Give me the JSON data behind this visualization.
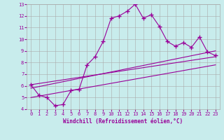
{
  "xlabel": "Windchill (Refroidissement éolien,°C)",
  "background_color": "#c8ecec",
  "line_color": "#990099",
  "grid_color": "#aaaaaa",
  "xlim": [
    -0.5,
    23.5
  ],
  "ylim": [
    4,
    13
  ],
  "xticks": [
    0,
    1,
    2,
    3,
    4,
    5,
    6,
    7,
    8,
    9,
    10,
    11,
    12,
    13,
    14,
    15,
    16,
    17,
    18,
    19,
    20,
    21,
    22,
    23
  ],
  "yticks": [
    4,
    5,
    6,
    7,
    8,
    9,
    10,
    11,
    12,
    13
  ],
  "data_line": {
    "x": [
      0,
      1,
      2,
      3,
      4,
      5,
      6,
      7,
      8,
      9,
      10,
      11,
      12,
      13,
      14,
      15,
      16,
      17,
      18,
      19,
      20,
      21,
      22,
      23
    ],
    "y": [
      6.1,
      5.2,
      5.0,
      4.3,
      4.4,
      5.6,
      5.7,
      7.8,
      8.5,
      9.8,
      11.8,
      12.0,
      12.4,
      13.0,
      11.8,
      12.1,
      11.1,
      9.8,
      9.4,
      9.7,
      9.3,
      10.2,
      8.9,
      8.6
    ]
  },
  "reg_lines": [
    {
      "x": [
        0,
        23
      ],
      "y": [
        5.0,
        7.8
      ]
    },
    {
      "x": [
        0,
        23
      ],
      "y": [
        5.8,
        9.0
      ]
    },
    {
      "x": [
        0,
        23
      ],
      "y": [
        6.1,
        8.5
      ]
    }
  ]
}
